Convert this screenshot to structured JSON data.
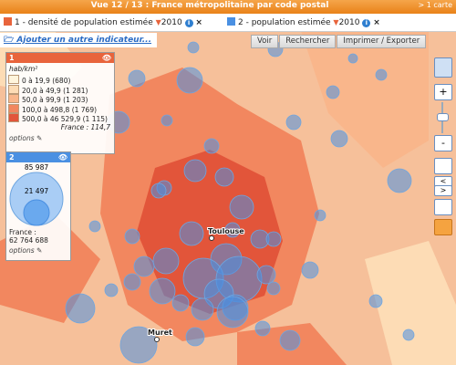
{
  "header": {
    "title": "Vue 12 / 13 : France métropolitaine par code postal",
    "maps_link": "> 1 carte"
  },
  "indicators": [
    {
      "label": "1 - densité de population estimée",
      "year": "2010",
      "color": "#e8643c"
    },
    {
      "label": "2 - population estimée",
      "year": "2010",
      "color": "#4a90e2"
    }
  ],
  "add_indicator": "Ajouter un autre indicateur...",
  "toolbar": [
    "Voir",
    "Rechercher",
    "Imprimer / Exporter"
  ],
  "legend_density": {
    "number": "1",
    "unit": "hab/km²",
    "classes": [
      {
        "label": "0 à 19,9 (680)",
        "color": "#fff5dc"
      },
      {
        "label": "20,0 à 49,9 (1 281)",
        "color": "#fddcb5"
      },
      {
        "label": "50,0 à 99,9 (1 203)",
        "color": "#f9b68b"
      },
      {
        "label": "100,0 à 498,8 (1 769)",
        "color": "#f2875f"
      },
      {
        "label": "500,0 à 46 529,9 (1 115)",
        "color": "#e2553a"
      }
    ],
    "france": "France : 114,7",
    "options": "options"
  },
  "legend_population": {
    "number": "2",
    "max": "85 987",
    "mid": "21 497",
    "france_label": "France :",
    "france_value": "62 764 688",
    "options": "options"
  },
  "places": [
    {
      "name": "Toulouse"
    },
    {
      "name": "Muret"
    }
  ]
}
